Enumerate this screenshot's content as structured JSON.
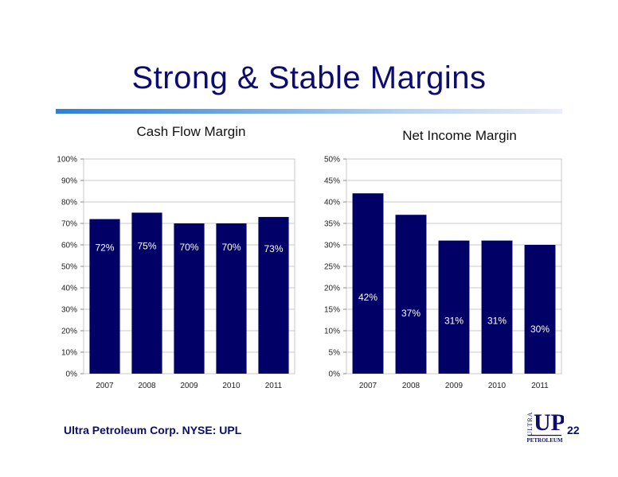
{
  "slide": {
    "title": "Strong & Stable Margins",
    "footer": "Ultra Petroleum Corp. NYSE: UPL",
    "page_number": "22",
    "logo": {
      "icon": "ultra-petroleum-logo",
      "text_top": "ULTRA",
      "text_mark": "UP",
      "text_bottom": "PETROLEUM"
    },
    "colors": {
      "title": "#0c0c6e",
      "bar": "#000066",
      "grid": "#c8c8c8"
    }
  },
  "chart_data": [
    {
      "type": "bar",
      "title": "Cash Flow Margin",
      "categories": [
        "2007",
        "2008",
        "2009",
        "2010",
        "2011"
      ],
      "values": [
        72,
        75,
        70,
        70,
        73
      ],
      "data_labels": [
        "72%",
        "75%",
        "70%",
        "70%",
        "73%"
      ],
      "ylim": [
        0,
        100
      ],
      "yticks": [
        0,
        10,
        20,
        30,
        40,
        50,
        60,
        70,
        80,
        90,
        100
      ],
      "ytick_labels": [
        "0%",
        "10%",
        "20%",
        "30%",
        "40%",
        "50%",
        "60%",
        "70%",
        "80%",
        "90%",
        "100%"
      ],
      "grid": true,
      "xlabel": "",
      "ylabel": ""
    },
    {
      "type": "bar",
      "title": "Net Income Margin",
      "categories": [
        "2007",
        "2008",
        "2009",
        "2010",
        "2011"
      ],
      "values": [
        42,
        37,
        31,
        31,
        30
      ],
      "data_labels": [
        "42%",
        "37%",
        "31%",
        "31%",
        "30%"
      ],
      "ylim": [
        0,
        50
      ],
      "yticks": [
        0,
        5,
        10,
        15,
        20,
        25,
        30,
        35,
        40,
        45,
        50
      ],
      "ytick_labels": [
        "0%",
        "5%",
        "10%",
        "15%",
        "20%",
        "25%",
        "30%",
        "35%",
        "40%",
        "45%",
        "50%"
      ],
      "grid": true,
      "xlabel": "",
      "ylabel": ""
    }
  ]
}
